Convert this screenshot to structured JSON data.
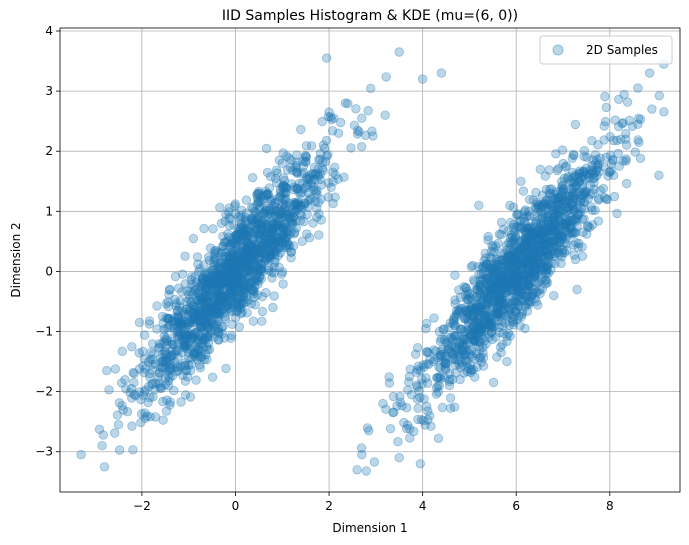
{
  "chart_data": {
    "type": "scatter",
    "title": "IID Samples Histogram & KDE (mu=(6, 0))",
    "xlabel": "Dimension 1",
    "ylabel": "Dimension 2",
    "xlim": [
      -3.75,
      9.5
    ],
    "ylim": [
      -3.67,
      4.05
    ],
    "xticks": [
      -2,
      0,
      2,
      4,
      6,
      8
    ],
    "xtick_labels": [
      "−2",
      "0",
      "2",
      "4",
      "6",
      "8"
    ],
    "yticks": [
      -3,
      -2,
      -1,
      0,
      1,
      2,
      3,
      4
    ],
    "ytick_labels": [
      "−3",
      "−2",
      "−1",
      "0",
      "1",
      "2",
      "3",
      "4"
    ],
    "grid": true,
    "legend_position": "top-right",
    "marker_color": "#1f77b4",
    "marker_alpha": 0.3,
    "series": [
      {
        "name": "2D Samples",
        "clusters": [
          {
            "center": [
              0,
              0
            ],
            "variance": [
              1,
              1
            ],
            "correlation": 0.9,
            "count": 1500
          },
          {
            "center": [
              6,
              0
            ],
            "variance": [
              1,
              1
            ],
            "correlation": 0.9,
            "count": 1500
          }
        ],
        "points": [
          [
            -3.3,
            -3.05
          ],
          [
            -2.8,
            -3.25
          ],
          [
            -2.85,
            -2.9
          ],
          [
            -2.5,
            -2.55
          ],
          [
            -2.75,
            -1.65
          ],
          [
            -2.05,
            -0.85
          ],
          [
            -1.4,
            -0.3
          ],
          [
            -0.3,
            0.8
          ],
          [
            0.5,
            1.3
          ],
          [
            1.0,
            1.8
          ],
          [
            1.5,
            1.9
          ],
          [
            1.95,
            3.55
          ],
          [
            2.0,
            2.65
          ],
          [
            2.35,
            2.8
          ],
          [
            2.7,
            2.55
          ],
          [
            3.2,
            2.6
          ],
          [
            3.5,
            3.65
          ],
          [
            2.1,
            2.55
          ],
          [
            0.8,
            -0.6
          ],
          [
            -0.9,
            0.55
          ],
          [
            2.6,
            -3.3
          ],
          [
            2.7,
            -3.05
          ],
          [
            3.5,
            -3.1
          ],
          [
            3.95,
            -3.2
          ],
          [
            2.85,
            -2.65
          ],
          [
            3.15,
            -2.2
          ],
          [
            4.0,
            3.2
          ],
          [
            4.4,
            3.3
          ],
          [
            5.2,
            1.1
          ],
          [
            4.8,
            -1.8
          ],
          [
            6.1,
            1.5
          ],
          [
            7.3,
            -0.3
          ],
          [
            8.2,
            1.75
          ],
          [
            8.6,
            3.05
          ],
          [
            8.85,
            3.3
          ],
          [
            9.05,
            1.6
          ],
          [
            8.9,
            2.7
          ],
          [
            8.6,
            2.45
          ],
          [
            4.15,
            -2.4
          ],
          [
            5.8,
            -1.5
          ]
        ]
      }
    ]
  }
}
